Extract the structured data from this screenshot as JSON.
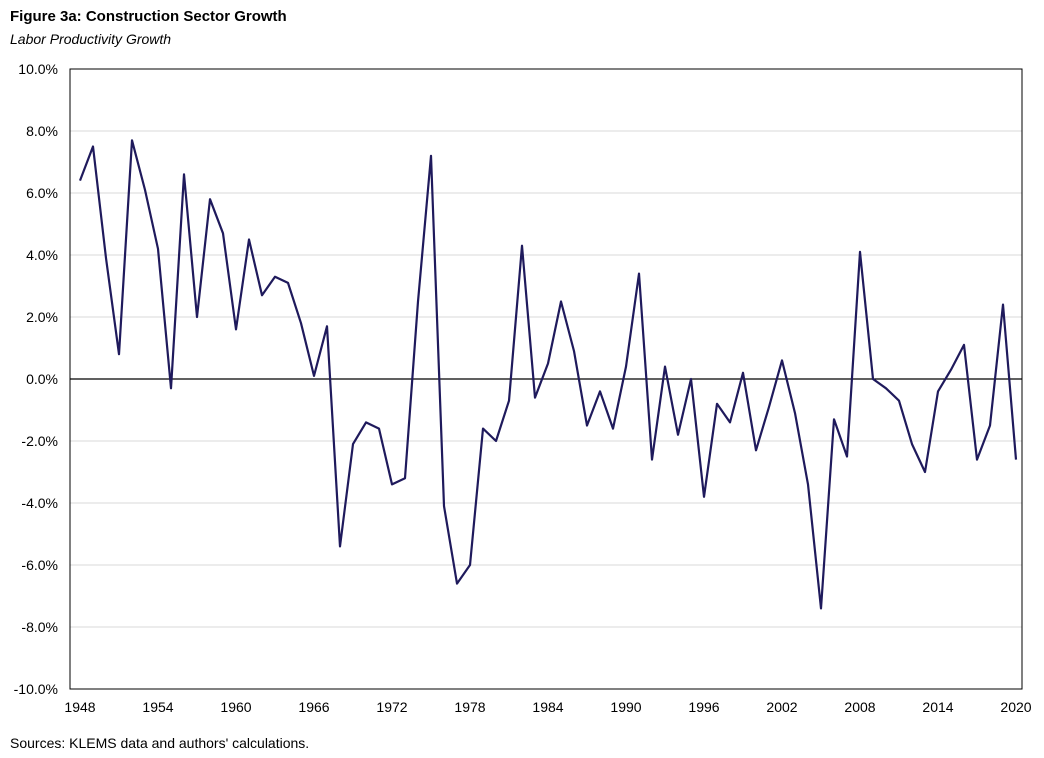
{
  "chart_data": {
    "type": "line",
    "title": "Figure 3a: Construction Sector Growth",
    "subtitle": "Labor Productivity Growth",
    "source": "Sources: KLEMS data and authors' calculations.",
    "xlabel": "",
    "ylabel": "",
    "ylim": [
      -10,
      10
    ],
    "y_ticks": [
      10,
      8,
      6,
      4,
      2,
      0,
      -2,
      -4,
      -6,
      -8,
      -10
    ],
    "y_tick_labels": [
      "10.0%",
      "8.0%",
      "6.0%",
      "4.0%",
      "2.0%",
      "0.0%",
      "-2.0%",
      "-4.0%",
      "-6.0%",
      "-8.0%",
      "-10.0%"
    ],
    "x_ticks": [
      1948,
      1954,
      1960,
      1966,
      1972,
      1978,
      1984,
      1990,
      1996,
      2002,
      2008,
      2014,
      2020
    ],
    "x_tick_labels": [
      "1948",
      "1954",
      "1960",
      "1966",
      "1972",
      "1978",
      "1984",
      "1990",
      "1996",
      "2002",
      "2008",
      "2014",
      "2020"
    ],
    "xlim": [
      1948,
      2020
    ],
    "grid": true,
    "line_color": "#1f1a5c",
    "series": [
      {
        "name": "Labor Productivity Growth",
        "x": [
          1948,
          1949,
          1950,
          1951,
          1952,
          1953,
          1954,
          1955,
          1956,
          1957,
          1958,
          1959,
          1960,
          1961,
          1962,
          1963,
          1964,
          1965,
          1966,
          1967,
          1968,
          1969,
          1970,
          1971,
          1972,
          1973,
          1974,
          1975,
          1976,
          1977,
          1978,
          1979,
          1980,
          1981,
          1982,
          1983,
          1984,
          1985,
          1986,
          1987,
          1988,
          1989,
          1990,
          1991,
          1992,
          1993,
          1994,
          1995,
          1996,
          1997,
          1998,
          1999,
          2000,
          2001,
          2002,
          2003,
          2004,
          2005,
          2006,
          2007,
          2008,
          2009,
          2010,
          2011,
          2012,
          2013,
          2014,
          2015,
          2016,
          2017,
          2018,
          2019,
          2020
        ],
        "values": [
          6.4,
          7.5,
          3.9,
          0.8,
          7.7,
          6.1,
          4.2,
          -0.3,
          6.6,
          2.0,
          5.8,
          4.7,
          1.6,
          4.5,
          2.7,
          3.3,
          3.1,
          1.8,
          0.1,
          1.7,
          -5.4,
          -2.1,
          -1.4,
          -1.6,
          -3.4,
          -3.2,
          2.5,
          7.2,
          -4.1,
          -6.6,
          -6.0,
          -1.6,
          -2.0,
          -0.7,
          4.3,
          -0.6,
          0.5,
          2.5,
          0.9,
          -1.5,
          -0.4,
          -1.6,
          0.4,
          3.4,
          -2.6,
          0.4,
          -1.8,
          0.0,
          -3.8,
          -0.8,
          -1.4,
          0.2,
          -2.3,
          -0.9,
          0.6,
          -1.1,
          -3.4,
          -7.4,
          -1.3,
          -2.5,
          4.1,
          0.0,
          -0.3,
          -0.7,
          -2.1,
          -3.0,
          -0.4,
          0.3,
          1.1,
          -2.6,
          -1.5,
          2.4,
          -2.6
        ]
      }
    ]
  }
}
